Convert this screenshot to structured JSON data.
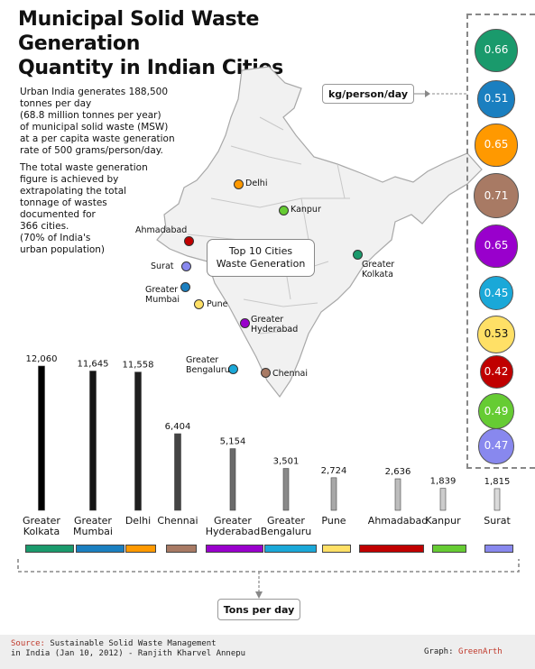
{
  "title_line1": "Municipal Solid Waste Generation",
  "title_line2": "Quantity in Indian Cities",
  "intro_paragraph1": "Urban India generates 188,500\ntonnes per day\n(68.8 million tonnes per year)\nof municipal solid waste (MSW)\nat a per capita waste generation\nrate of 500 grams/person/day.",
  "intro_paragraph2": "The total waste generation\nfigure is achieved by\nextrapolating the total\ntonnage of wastes\ndocumented for\n366 cities.\n(70% of India's\nurban population)",
  "map_callout": "Top 10 Cities\nWaste Generation",
  "per_capita_label": "kg/person/day",
  "tons_label": "Tons per day",
  "colors": {
    "Greater Kolkata": "#1a9a6c",
    "Greater Mumbai": "#1a7fc0",
    "Delhi": "#ff9900",
    "Chennai": "#a87a64",
    "Greater Hyderabad": "#9900cc",
    "Greater Bengaluru": "#1aa8d8",
    "Pune": "#ffe066",
    "Ahmadabad": "#c00000",
    "Kanpur": "#66cc33",
    "Surat": "#8888ee"
  },
  "map_cities": [
    {
      "name": "Delhi",
      "label": "Delhi"
    },
    {
      "name": "Kanpur",
      "label": "Kanpur"
    },
    {
      "name": "Ahmadabad",
      "label": "Ahmadabad"
    },
    {
      "name": "Greater Kolkata",
      "label": "Greater\nKolkata"
    },
    {
      "name": "Surat",
      "label": "Surat"
    },
    {
      "name": "Greater Mumbai",
      "label": "Greater\nMumbai"
    },
    {
      "name": "Pune",
      "label": "Pune"
    },
    {
      "name": "Greater Hyderabad",
      "label": "Greater\nHyderabad"
    },
    {
      "name": "Greater Bengaluru",
      "label": "Greater\nBengaluru"
    },
    {
      "name": "Chennai",
      "label": "Chennai"
    }
  ],
  "chart_data": [
    {
      "type": "bar",
      "categories": [
        "Greater Kolkata",
        "Greater Mumbai",
        "Delhi",
        "Chennai",
        "Greater Hyderabad",
        "Greater Bengaluru",
        "Pune",
        "Ahmadabad",
        "Kanpur",
        "Surat"
      ],
      "category_labels": [
        "Greater\nKolkata",
        "Greater\nMumbai",
        "Delhi",
        "Chennai",
        "Greater\nHyderabad",
        "Greater\nBengaluru",
        "Pune",
        "Ahmadabad",
        "Kanpur",
        "Surat"
      ],
      "values": [
        12060,
        11645,
        11558,
        6404,
        5154,
        3501,
        2724,
        2636,
        1839,
        1815
      ],
      "value_labels": [
        "12,060",
        "11,645",
        "11,558",
        "6,404",
        "5,154",
        "3,501",
        "2,724",
        "2,636",
        "1,839",
        "1,815"
      ],
      "ylabel": "Tons per day",
      "ylim": [
        0,
        12060
      ],
      "grid": false
    },
    {
      "type": "scatter",
      "values": [
        0.66,
        0.51,
        0.65,
        0.71,
        0.65,
        0.45,
        0.53,
        0.42,
        0.49,
        0.47
      ],
      "value_labels": [
        "0.66",
        "0.51",
        "0.65",
        "0.71",
        "0.65",
        "0.45",
        "0.53",
        "0.42",
        "0.49",
        "0.47"
      ],
      "unit": "kg/person/day"
    }
  ],
  "source_label": "Source:",
  "source_text_line1": "Sustainable Solid Waste Management",
  "source_text_line2": "in India (Jan 10, 2012)  - Ranjith Kharvel Annepu",
  "graph_credit_label": "Graph:",
  "graph_credit_brand": "GreenArth"
}
